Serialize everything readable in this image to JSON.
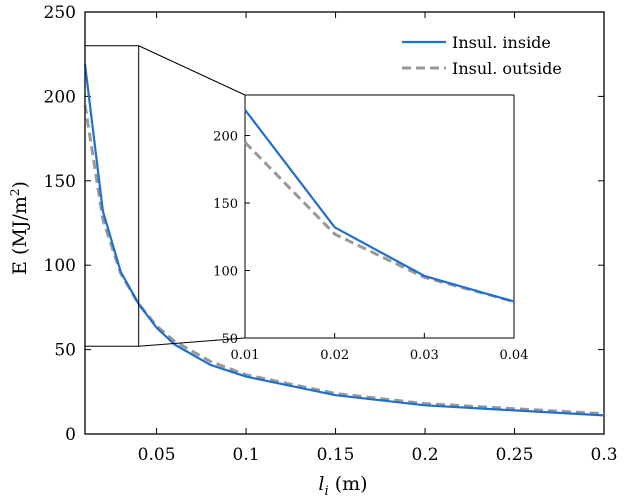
{
  "chart_data": {
    "type": "line",
    "title": "",
    "xlabel": "l",
    "xlabel_sub": "i",
    "xlabel_unit": "(m)",
    "ylabel": "E (MJ/m",
    "ylabel_sup": "2",
    "ylabel_close": ")",
    "xlim": [
      0.01,
      0.3
    ],
    "ylim": [
      0,
      250
    ],
    "x_ticks": [
      0.05,
      0.1,
      0.15,
      0.2,
      0.25,
      0.3
    ],
    "x_tick_labels": [
      "0.05",
      "0.1",
      "0.15",
      "0.2",
      "0.25",
      "0.3"
    ],
    "y_ticks": [
      0,
      50,
      100,
      150,
      200,
      250
    ],
    "y_tick_labels": [
      "0",
      "50",
      "100",
      "150",
      "200",
      "250"
    ],
    "legend_position": "top-right",
    "series": [
      {
        "name": "Insul. inside",
        "style": "solid",
        "color": "#1f6fd1",
        "x": [
          0.01,
          0.02,
          0.03,
          0.04,
          0.05,
          0.06,
          0.08,
          0.1,
          0.15,
          0.2,
          0.25,
          0.3
        ],
        "y": [
          219,
          132,
          96,
          77,
          63,
          53,
          41,
          34,
          23,
          17,
          14,
          11
        ]
      },
      {
        "name": "Insul. outside",
        "style": "dashed",
        "color": "#999999",
        "x": [
          0.01,
          0.02,
          0.03,
          0.04,
          0.05,
          0.06,
          0.08,
          0.1,
          0.15,
          0.2,
          0.25,
          0.3
        ],
        "y": [
          195,
          127,
          95,
          77,
          64,
          55,
          43,
          35,
          24,
          18,
          15,
          12
        ]
      }
    ],
    "inset": {
      "xlim": [
        0.01,
        0.04
      ],
      "ylim": [
        50,
        230
      ],
      "x_ticks": [
        0.01,
        0.02,
        0.03,
        0.04
      ],
      "x_tick_labels": [
        "0.01",
        "0.02",
        "0.03",
        "0.04"
      ],
      "y_ticks": [
        50,
        100,
        150,
        200
      ],
      "y_tick_labels": [
        "50",
        "100",
        "150",
        "200"
      ],
      "zoom_region": {
        "x": [
          0.01,
          0.04
        ],
        "y": [
          52,
          230
        ]
      }
    }
  }
}
